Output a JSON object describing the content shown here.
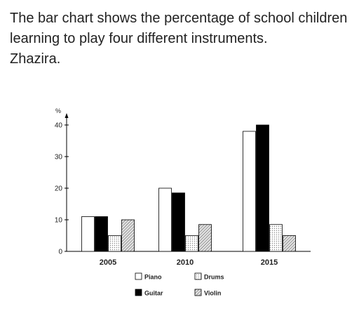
{
  "caption": {
    "line1": "The bar chart shows the percentage of school children learning to play four different instruments.",
    "line2": "Zhazira."
  },
  "colors": {
    "text": "#222222",
    "axis": "#000000",
    "piano": "#ffffff",
    "guitar": "#000000",
    "drums": "#e8e8e8",
    "violin": "#d0d0d0"
  },
  "chart_data": {
    "type": "bar",
    "title": "",
    "xlabel": "",
    "ylabel": "%",
    "ylim": [
      0,
      40
    ],
    "yticks": [
      0,
      10,
      20,
      30,
      40
    ],
    "categories": [
      "2005",
      "2010",
      "2015"
    ],
    "series": [
      {
        "name": "Piano",
        "pattern": "white",
        "values": [
          11,
          20,
          38
        ]
      },
      {
        "name": "Guitar",
        "pattern": "black",
        "values": [
          11,
          18.5,
          40
        ]
      },
      {
        "name": "Drums",
        "pattern": "dots",
        "values": [
          5,
          5,
          8.5
        ]
      },
      {
        "name": "Violin",
        "pattern": "hatch",
        "values": [
          10,
          8.5,
          5
        ]
      }
    ],
    "legend": {
      "placement": "bottom",
      "order": [
        "Piano",
        "Drums",
        "Guitar",
        "Violin"
      ]
    },
    "grid": false
  }
}
